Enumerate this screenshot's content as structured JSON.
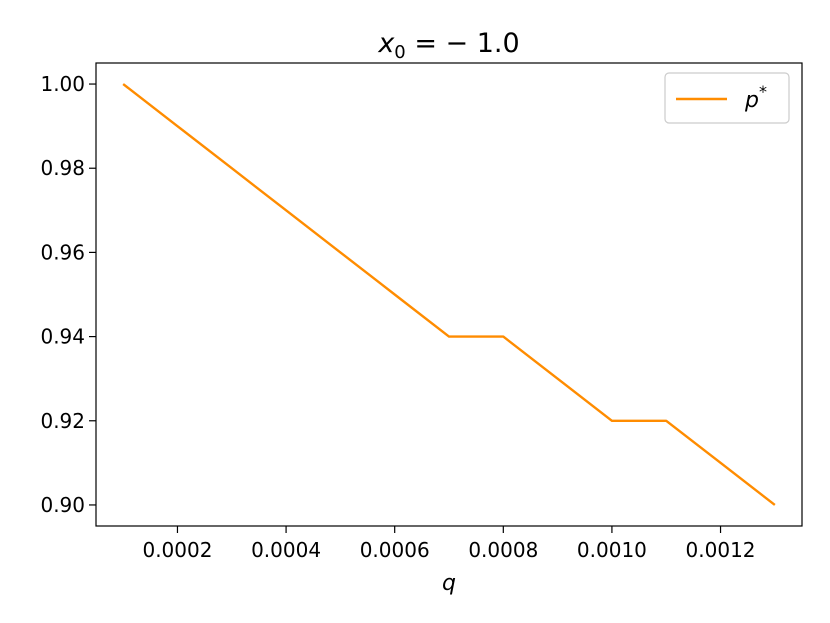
{
  "chart_data": {
    "type": "line",
    "title_base": "x",
    "title_sub": "0",
    "title_rest": " = − 1.0",
    "xlabel": "q",
    "ylabel": "",
    "xlim": [
      5e-05,
      0.00135
    ],
    "ylim": [
      0.895,
      1.005
    ],
    "xticks": [
      0.0002,
      0.0004,
      0.0006,
      0.0008,
      0.001,
      0.0012
    ],
    "xtick_labels": [
      "0.0002",
      "0.0004",
      "0.0006",
      "0.0008",
      "0.0010",
      "0.0012"
    ],
    "yticks": [
      0.9,
      0.92,
      0.94,
      0.96,
      0.98,
      1.0
    ],
    "ytick_labels": [
      "0.90",
      "0.92",
      "0.94",
      "0.96",
      "0.98",
      "1.00"
    ],
    "grid": false,
    "legend_position": "top-right",
    "series": [
      {
        "legend_base": "p",
        "legend_sup": "*",
        "color": "#ff8c00",
        "x": [
          0.0001,
          0.0002,
          0.0003,
          0.0004,
          0.0005,
          0.0006,
          0.0007,
          0.0008,
          0.0009,
          0.001,
          0.0011,
          0.0012,
          0.0013
        ],
        "y": [
          1.0,
          0.99,
          0.98,
          0.97,
          0.96,
          0.95,
          0.94,
          0.94,
          0.93,
          0.92,
          0.92,
          0.91,
          0.9
        ]
      }
    ]
  }
}
